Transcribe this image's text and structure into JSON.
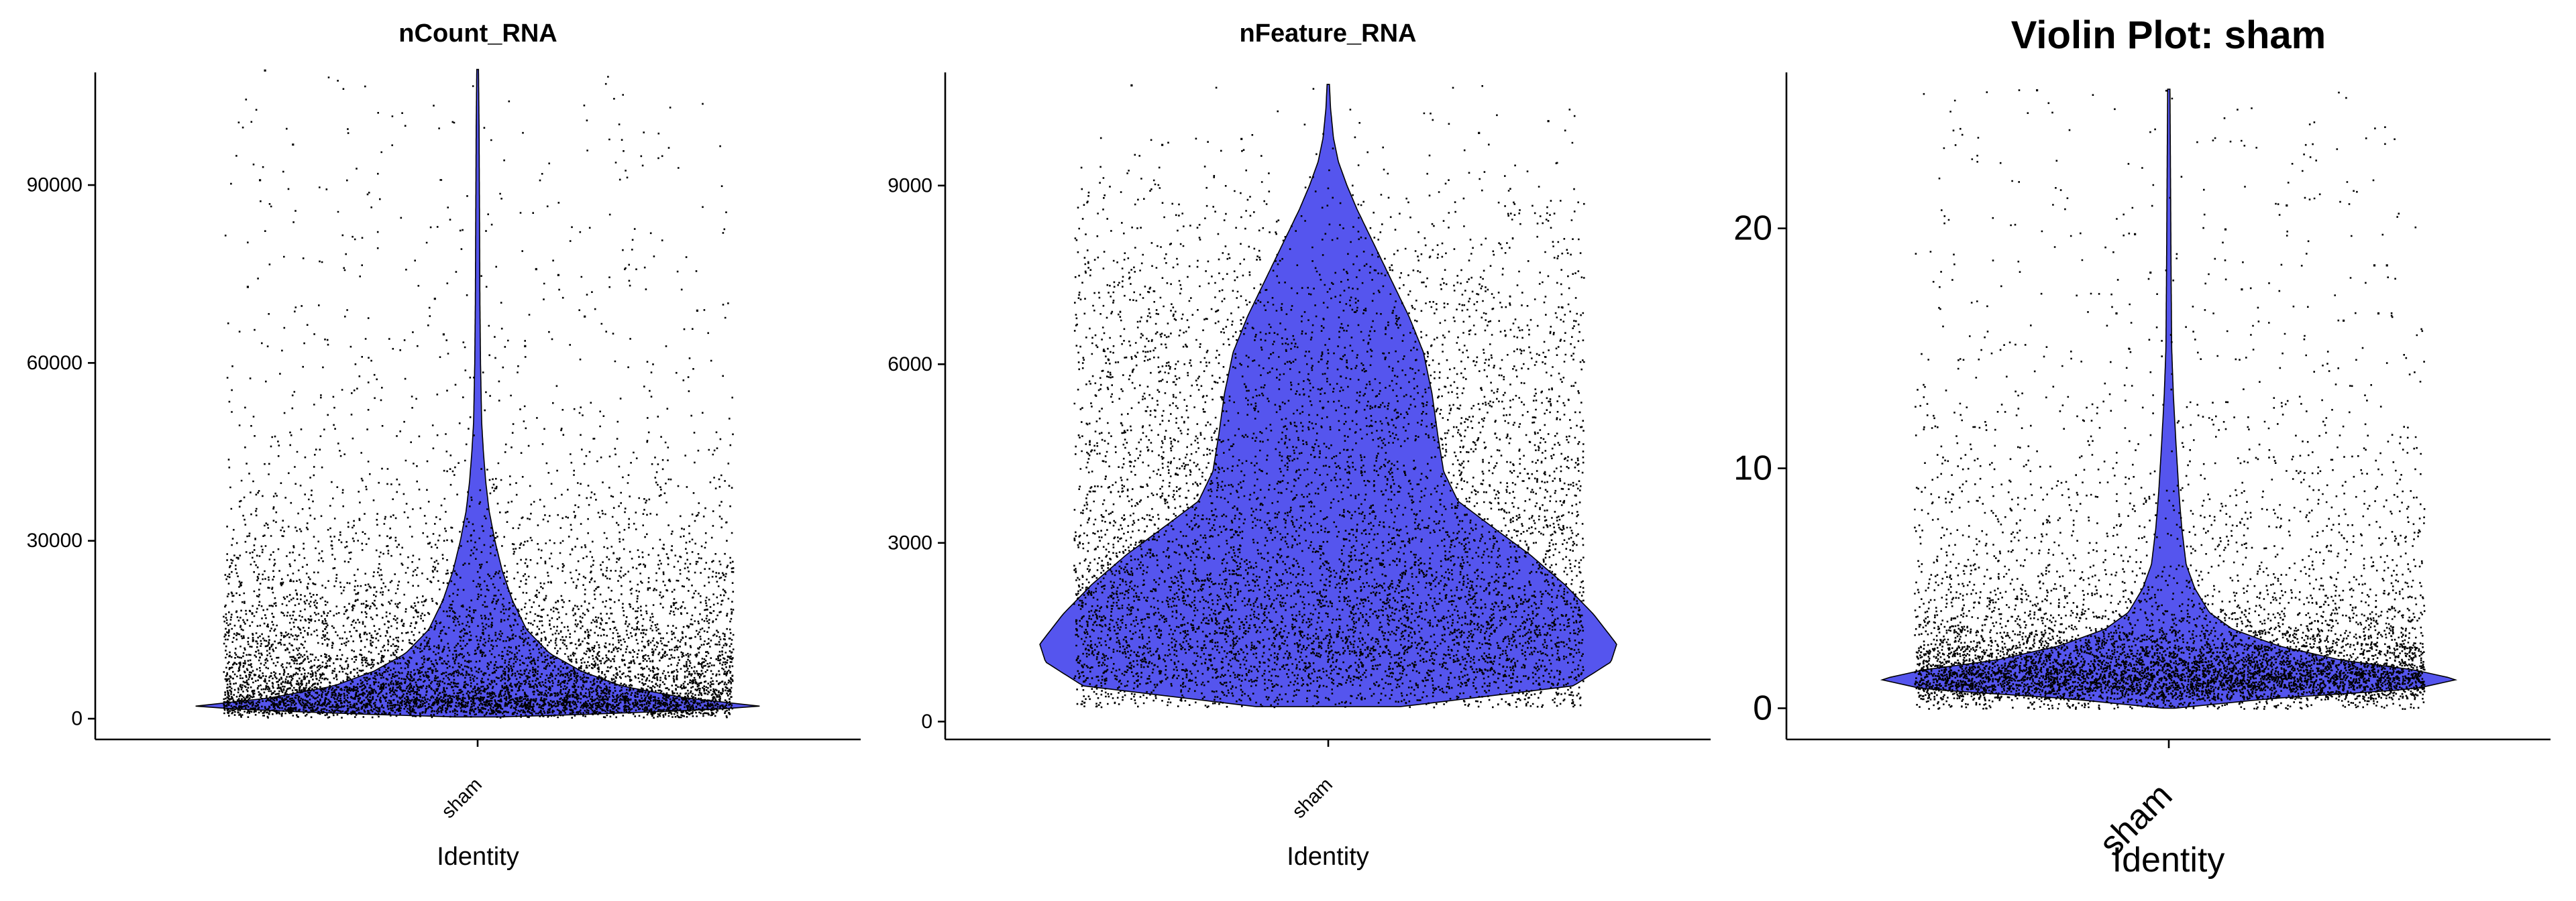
{
  "chart_data": [
    {
      "type": "violin",
      "title": "nCount_RNA",
      "xlabel": "Identity",
      "ylabel": "",
      "categories": [
        "sham"
      ],
      "ylim": [
        -3500,
        109000
      ],
      "yticks": [
        0,
        30000,
        60000,
        90000
      ],
      "tick_labels": [
        "0",
        "30000",
        "60000",
        "90000"
      ],
      "points": 7500,
      "series": [
        {
          "category": "sham",
          "y_min": 300,
          "y_max": 109500,
          "density": [
            [
              300,
              0.08
            ],
            [
              1000,
              0.55
            ],
            [
              2000,
              1.0
            ],
            [
              3500,
              0.72
            ],
            [
              5500,
              0.5
            ],
            [
              8000,
              0.36
            ],
            [
              11000,
              0.25
            ],
            [
              15000,
              0.17
            ],
            [
              20000,
              0.12
            ],
            [
              25000,
              0.085
            ],
            [
              30000,
              0.06
            ],
            [
              35000,
              0.04
            ],
            [
              40000,
              0.028
            ],
            [
              45000,
              0.02
            ],
            [
              50000,
              0.014
            ],
            [
              55000,
              0.012
            ],
            [
              60000,
              0.01
            ],
            [
              70000,
              0.008
            ],
            [
              80000,
              0.007
            ],
            [
              90000,
              0.006
            ],
            [
              100000,
              0.005
            ],
            [
              109500,
              0.003
            ]
          ],
          "outliers": [
            109500,
            97000,
            91000,
            76000,
            75000,
            73000,
            71000,
            69000,
            68000,
            65000,
            63000
          ]
        }
      ],
      "fill_color": "#5555ee",
      "point_color": "#000000"
    },
    {
      "type": "violin",
      "title": "nFeature_RNA",
      "xlabel": "Identity",
      "ylabel": "",
      "categories": [
        "sham"
      ],
      "ylim": [
        -300,
        10900
      ],
      "yticks": [
        0,
        3000,
        6000,
        9000
      ],
      "tick_labels": [
        "0",
        "3000",
        "6000",
        "9000"
      ],
      "points": 7500,
      "series": [
        {
          "category": "sham",
          "y_min": 250,
          "y_max": 10700,
          "density": [
            [
              250,
              0.25
            ],
            [
              600,
              0.85
            ],
            [
              1000,
              0.98
            ],
            [
              1300,
              1.0
            ],
            [
              1800,
              0.92
            ],
            [
              2300,
              0.82
            ],
            [
              2800,
              0.7
            ],
            [
              3300,
              0.56
            ],
            [
              3700,
              0.45
            ],
            [
              4200,
              0.4
            ],
            [
              4800,
              0.38
            ],
            [
              5500,
              0.36
            ],
            [
              6200,
              0.33
            ],
            [
              6800,
              0.28
            ],
            [
              7400,
              0.22
            ],
            [
              8000,
              0.16
            ],
            [
              8600,
              0.1
            ],
            [
              9000,
              0.065
            ],
            [
              9400,
              0.035
            ],
            [
              9800,
              0.018
            ],
            [
              10300,
              0.008
            ],
            [
              10700,
              0.004
            ]
          ],
          "outliers": [
            10700,
            10100,
            9900,
            9800,
            9700
          ]
        }
      ],
      "fill_color": "#5555ee",
      "point_color": "#000000"
    },
    {
      "type": "violin",
      "title": "Violin Plot: sham",
      "xlabel": "Identity",
      "ylabel": "",
      "categories": [
        "sham"
      ],
      "ylim": [
        -1.3,
        26.5
      ],
      "yticks": [
        0,
        10,
        20
      ],
      "tick_labels": [
        "0",
        "10",
        "20"
      ],
      "points": 7500,
      "series": [
        {
          "category": "sham",
          "y_min": 0,
          "y_max": 25.8,
          "density": [
            [
              0,
              0.02
            ],
            [
              0.4,
              0.35
            ],
            [
              0.8,
              0.85
            ],
            [
              1.2,
              1.0
            ],
            [
              1.6,
              0.85
            ],
            [
              2.0,
              0.6
            ],
            [
              2.6,
              0.38
            ],
            [
              3.3,
              0.22
            ],
            [
              4.0,
              0.14
            ],
            [
              5.0,
              0.09
            ],
            [
              6.0,
              0.06
            ],
            [
              7.5,
              0.045
            ],
            [
              9.0,
              0.035
            ],
            [
              11.0,
              0.025
            ],
            [
              13.0,
              0.016
            ],
            [
              15.0,
              0.01
            ],
            [
              18.0,
              0.008
            ],
            [
              22.0,
              0.006
            ],
            [
              25.8,
              0.004
            ]
          ],
          "outliers": [
            25.8,
            21.0,
            20.0,
            19.8,
            18.5,
            18.5,
            18.2,
            17.5,
            16.5,
            16.5,
            16.2
          ]
        }
      ],
      "fill_color": "#5555ee",
      "point_color": "#000000"
    }
  ]
}
